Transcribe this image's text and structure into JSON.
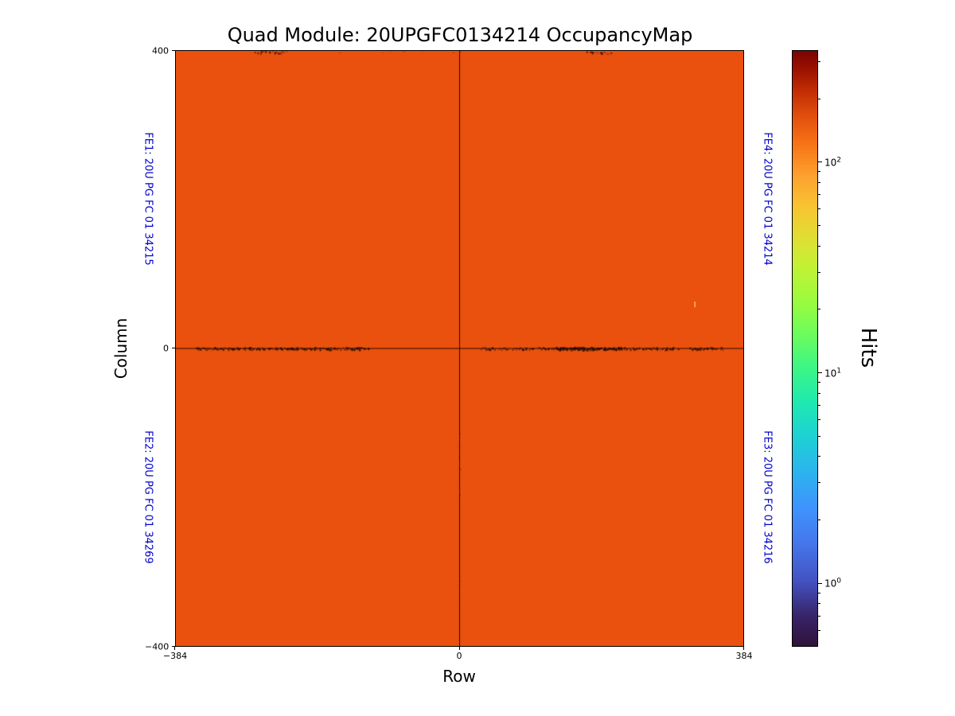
{
  "axes": {
    "x_tick_labels": [
      "−384",
      "0",
      "384"
    ],
    "y_tick_labels": [
      "400",
      "0",
      "−400"
    ]
  },
  "colorbar": {
    "label": "Hits",
    "scale": "log",
    "vmin": 0.5,
    "vmax": 340,
    "tick_exponents": [
      0,
      1,
      2
    ],
    "tick_base": "10"
  },
  "chart_data": {
    "type": "heatmap",
    "title": "Quad Module: 20UPGFC0134214 OccupancyMap",
    "xlabel": "Row",
    "ylabel": "Column",
    "x_range": [
      -384,
      384
    ],
    "y_range": [
      -400,
      400
    ],
    "x_tick_values": [
      -384,
      0,
      384
    ],
    "y_tick_values": [
      -400,
      0,
      400
    ],
    "colormap": "turbo",
    "color_scale": "log",
    "colorbar_label": "Hits",
    "colorbar_tick_values": [
      1,
      10,
      100
    ],
    "colorbar_range_approx": [
      0.5,
      340
    ],
    "background_value_hits_approx": 100,
    "background_color": "#ea500e",
    "grid": false,
    "features": [
      "uniform occupancy of roughly 100 hits across all four front-end quadrants",
      "thin black crosshair lines at row 0 and column 0 marking chip boundaries",
      "band of scattered dark (low-occupancy) pixels along column 0 on both sides of center",
      "small clusters of dark pixels at the top edge near column 400",
      "a few sparse dark pixels along row 0 below center",
      "single lighter low-hit pixel near row 317, column 62"
    ],
    "quadrant_chips": {
      "top_left": "FE1: 20U PG FC 01 34215",
      "top_right": "FE4: 20U PG FC 01 34214",
      "bottom_left": "FE2: 20U PG FC 01 34269",
      "bottom_right": "FE3: 20U PG FC 01 34216"
    }
  }
}
